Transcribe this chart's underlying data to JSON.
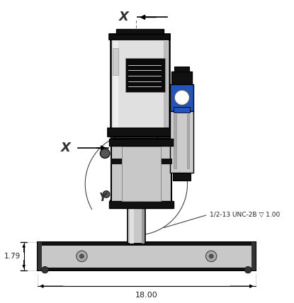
{
  "bg_color": "#ffffff",
  "dim_18_label": "18.00",
  "dim_179_label": "1.79",
  "thread_label": "1/2-13 UNC-2B ▽ 1.00",
  "x_label_top": "X",
  "x_label_mid": "X",
  "y_label": "Y",
  "line_color": "#000000",
  "dark": "#111111",
  "silver": "#c8c8c8",
  "light_gray": "#e0e0e0",
  "mid_gray": "#aaaaaa",
  "blue": "#2255bb",
  "dim_line_color": "#333333",
  "arrow_color": "#222222"
}
